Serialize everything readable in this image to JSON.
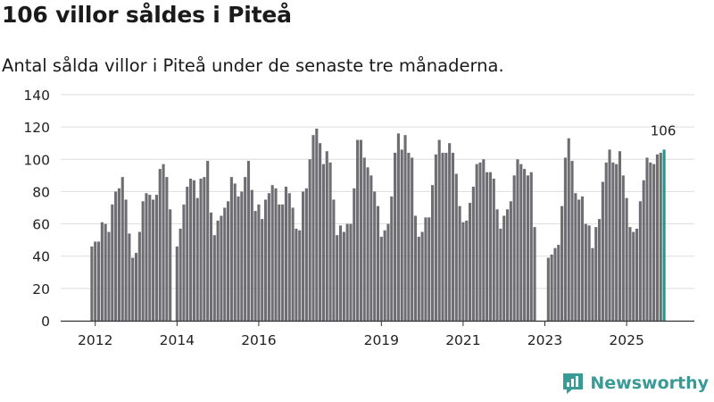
{
  "header": {
    "title": "106 villor såldes i Piteå",
    "subtitle": "Antal sålda villor i Piteå under de senaste tre månaderna."
  },
  "brand": {
    "name": "Newsworthy"
  },
  "colors": {
    "bar": "#6e6d72",
    "highlight": "#1a9a8c",
    "grid": "#dddddd",
    "axis": "#333333",
    "brand": "#3a9a96"
  },
  "chart_data": {
    "type": "bar",
    "title": "106 villor såldes i Piteå",
    "subtitle": "Antal sålda villor i Piteå under de senaste tre månaderna.",
    "x_start": [
      2011,
      11
    ],
    "x_end": [
      2025,
      11
    ],
    "y_ticks": [
      0,
      20,
      40,
      60,
      80,
      100,
      120,
      140
    ],
    "ylim": [
      0,
      140
    ],
    "x_tick_labels": [
      "2012",
      "2014",
      "2016",
      "2019",
      "2021",
      "2023",
      "2025"
    ],
    "x_tick_years": [
      2012,
      2014,
      2016,
      2019,
      2021,
      2023,
      2025
    ],
    "segments": [
      {
        "start": [
          2011,
          11
        ],
        "values": [
          46,
          49,
          49,
          61,
          60,
          55,
          72,
          80,
          82,
          89,
          75,
          54,
          39,
          42,
          55,
          74,
          79,
          78,
          75,
          78,
          94,
          97,
          89,
          69
        ]
      },
      {
        "start": [
          2013,
          12
        ],
        "values": [
          46,
          57,
          72,
          83,
          88,
          87,
          76,
          88,
          89,
          99,
          67,
          53,
          62,
          65,
          70,
          74,
          89,
          85,
          77,
          80,
          89,
          99,
          81,
          68,
          72,
          63,
          75,
          79,
          84,
          82,
          72,
          72,
          83,
          79,
          70,
          57,
          56,
          80,
          82,
          100,
          115,
          119,
          110,
          97,
          105,
          98,
          75,
          53,
          59,
          55,
          60,
          60,
          82,
          112,
          112,
          101,
          95,
          90,
          80,
          71,
          52,
          56,
          60,
          77,
          104,
          116,
          106,
          115,
          104,
          101,
          65,
          52,
          55,
          64,
          64,
          84,
          103,
          112,
          104,
          104,
          110,
          104,
          91,
          71,
          61,
          62,
          73,
          83,
          97,
          98,
          100,
          92,
          92,
          88,
          69,
          57,
          65,
          69,
          74,
          90,
          100,
          97,
          94,
          90,
          92,
          58
        ]
      },
      {
        "start": [
          2023,
          1
        ],
        "values": [
          39,
          41,
          45,
          47,
          71,
          101,
          113,
          99,
          79,
          75,
          77,
          60,
          59,
          45,
          58,
          63,
          86,
          98,
          106,
          98,
          97,
          105,
          90,
          76,
          58,
          55,
          57,
          74,
          87,
          101,
          98,
          97,
          103,
          104,
          106
        ]
      }
    ],
    "highlight_label": "106"
  }
}
